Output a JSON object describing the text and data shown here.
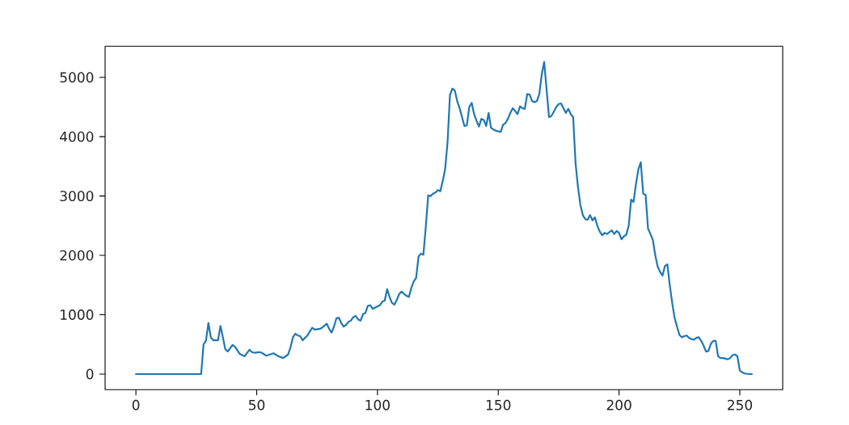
{
  "chart_data": {
    "type": "line",
    "x": [
      0,
      27,
      28,
      29,
      30,
      31,
      32,
      34,
      35,
      36,
      37,
      38,
      40,
      41,
      43,
      45,
      47,
      48,
      49,
      51,
      52,
      54,
      57,
      59,
      61,
      63,
      64,
      65,
      66,
      67,
      68,
      69,
      71,
      72,
      73,
      74,
      76,
      77,
      79,
      80,
      81,
      82,
      83,
      84,
      85,
      86,
      87,
      88,
      89,
      90,
      91,
      92,
      93,
      94,
      95,
      96,
      97,
      98,
      99,
      101,
      102,
      103,
      104,
      105,
      106,
      107,
      108,
      109,
      110,
      111,
      112,
      113,
      114,
      115,
      116,
      117,
      118,
      119,
      120,
      121,
      122,
      123,
      124,
      125,
      126,
      127,
      128,
      129,
      130,
      131,
      132,
      133,
      134,
      135,
      136,
      137,
      138,
      139,
      140,
      141,
      142,
      143,
      144,
      145,
      146,
      147,
      148,
      149,
      150,
      151,
      152,
      153,
      154,
      155,
      156,
      157,
      158,
      159,
      160,
      161,
      162,
      163,
      164,
      165,
      166,
      167,
      168,
      169,
      170,
      171,
      172,
      173,
      174,
      175,
      176,
      177,
      178,
      179,
      180,
      181,
      182,
      183,
      184,
      185,
      186,
      187,
      188,
      189,
      190,
      191,
      192,
      193,
      194,
      195,
      196,
      197,
      198,
      199,
      200,
      201,
      202,
      203,
      204,
      205,
      206,
      207,
      208,
      209,
      210,
      211,
      212,
      213,
      214,
      215,
      216,
      217,
      218,
      219,
      220,
      221,
      222,
      223,
      224,
      225,
      226,
      227,
      228,
      229,
      230,
      231,
      232,
      233,
      234,
      235,
      236,
      237,
      238,
      239,
      240,
      241,
      242,
      243,
      245,
      246,
      247,
      248,
      249,
      250,
      251,
      252,
      254,
      255
    ],
    "series": [
      {
        "color": "#1f77b4",
        "values": [
          0,
          0,
          500,
          560,
          860,
          620,
          570,
          570,
          810,
          620,
          420,
          380,
          490,
          460,
          340,
          300,
          410,
          370,
          360,
          370,
          360,
          310,
          350,
          300,
          270,
          330,
          450,
          620,
          680,
          650,
          640,
          570,
          650,
          720,
          780,
          750,
          760,
          780,
          850,
          760,
          700,
          800,
          940,
          950,
          860,
          800,
          830,
          880,
          900,
          960,
          980,
          920,
          900,
          1010,
          1030,
          1150,
          1160,
          1100,
          1120,
          1160,
          1220,
          1240,
          1430,
          1300,
          1200,
          1170,
          1250,
          1350,
          1390,
          1350,
          1320,
          1300,
          1450,
          1560,
          1620,
          1980,
          2030,
          2010,
          2480,
          3010,
          3000,
          3040,
          3060,
          3100,
          3080,
          3250,
          3450,
          3900,
          4700,
          4810,
          4780,
          4600,
          4480,
          4330,
          4180,
          4190,
          4500,
          4570,
          4380,
          4270,
          4170,
          4300,
          4280,
          4180,
          4400,
          4150,
          4120,
          4100,
          4090,
          4080,
          4200,
          4230,
          4300,
          4400,
          4480,
          4430,
          4380,
          4510,
          4480,
          4470,
          4720,
          4710,
          4600,
          4580,
          4600,
          4720,
          5050,
          5260,
          4800,
          4330,
          4350,
          4420,
          4500,
          4550,
          4560,
          4480,
          4400,
          4470,
          4380,
          4330,
          3550,
          3150,
          2850,
          2680,
          2610,
          2600,
          2680,
          2590,
          2640,
          2500,
          2400,
          2340,
          2380,
          2360,
          2390,
          2420,
          2360,
          2410,
          2380,
          2270,
          2320,
          2350,
          2500,
          2940,
          2900,
          3200,
          3450,
          3570,
          3040,
          3020,
          2450,
          2360,
          2260,
          2000,
          1810,
          1720,
          1660,
          1820,
          1850,
          1500,
          1200,
          950,
          800,
          660,
          620,
          640,
          650,
          610,
          590,
          580,
          610,
          620,
          560,
          480,
          380,
          390,
          510,
          560,
          560,
          300,
          270,
          270,
          250,
          270,
          320,
          330,
          300,
          60,
          30,
          10,
          0,
          0
        ]
      }
    ],
    "xlim": [
      -12.75,
      267.75
    ],
    "ylim": [
      -263,
      5523
    ],
    "xticks": [
      0,
      50,
      100,
      150,
      200,
      250
    ],
    "yticks": [
      0,
      1000,
      2000,
      3000,
      4000,
      5000
    ],
    "line_style": "solid"
  }
}
